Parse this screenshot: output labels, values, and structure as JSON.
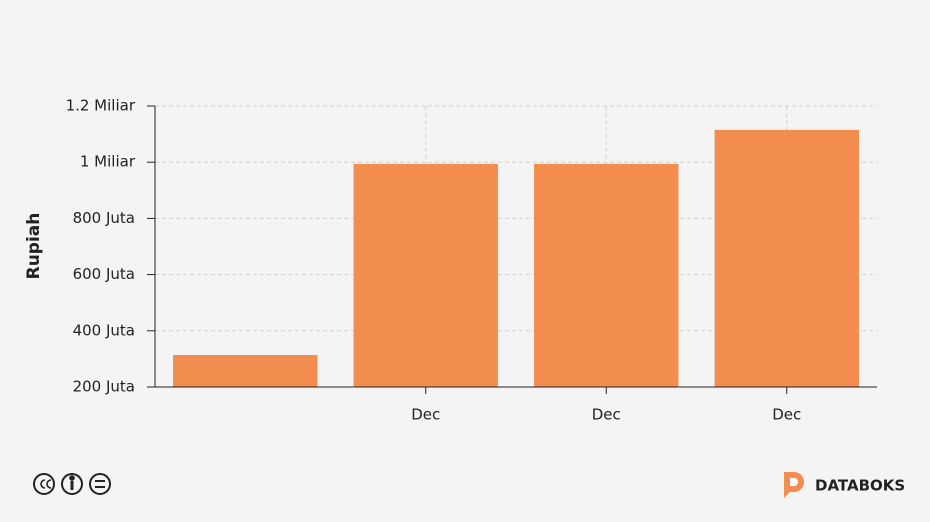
{
  "chart_data": {
    "type": "bar",
    "y_label": "Rupiah",
    "categories": [
      null,
      "Dec",
      "Dec",
      "Dec"
    ],
    "values": [
      314000000,
      994000000,
      994000000,
      1115000000
    ],
    "color": "#f38d4f",
    "ylim": [
      200000000,
      1200000000
    ],
    "yticks": [
      {
        "value": 200000000,
        "label": "200 Juta"
      },
      {
        "value": 400000000,
        "label": "400 Juta"
      },
      {
        "value": 600000000,
        "label": "600 Juta"
      },
      {
        "value": 800000000,
        "label": "800 Juta"
      },
      {
        "value": 1000000000,
        "label": "1 Miliar"
      },
      {
        "value": 1200000000,
        "label": "1.2 Miliar"
      }
    ],
    "grid": true
  },
  "footer": {
    "brand": "DATABOKS"
  }
}
